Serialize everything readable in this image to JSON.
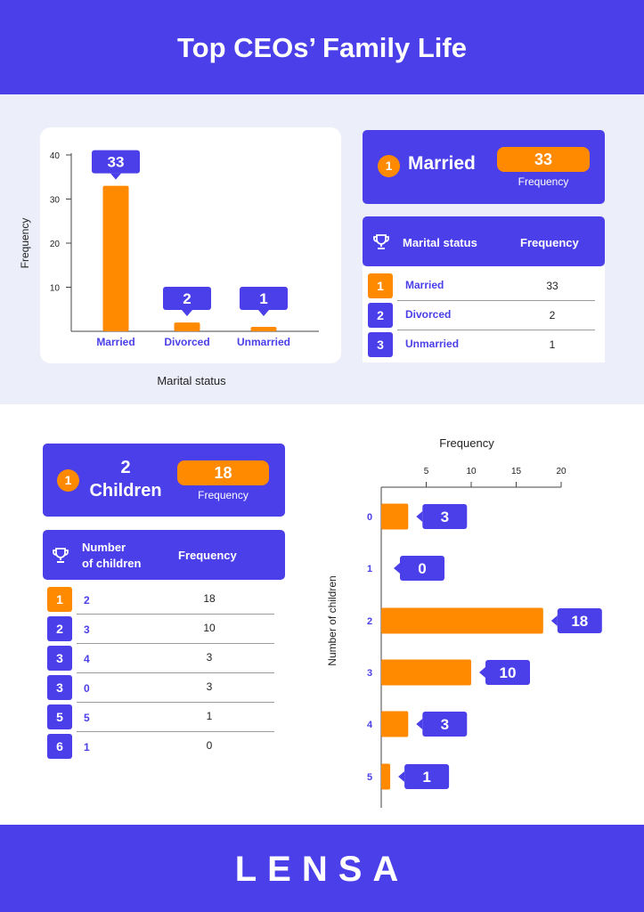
{
  "title": "Top CEOs’ Family Life",
  "logo": "LENSA",
  "colors": {
    "accent": "#4a3fe8",
    "orange": "#ff8a00",
    "band": "#eceef9"
  },
  "icons": {
    "trophy": "trophy-icon"
  },
  "marital": {
    "top_card": {
      "rank": "1",
      "label": "Married",
      "value": "33",
      "value_caption": "Frequency"
    },
    "table_header": {
      "col1": "Marital status",
      "col2": "Frequency"
    },
    "rows": [
      {
        "rank": "1",
        "label": "Married",
        "value": "33"
      },
      {
        "rank": "2",
        "label": "Divorced",
        "value": "2"
      },
      {
        "rank": "3",
        "label": "Unmarried",
        "value": "1"
      }
    ]
  },
  "children": {
    "top_card": {
      "rank": "1",
      "label_line1": "2",
      "label_line2": "Children",
      "value": "18",
      "value_caption": "Frequency"
    },
    "table_header": {
      "col1_line1": "Number",
      "col1_line2": "of children",
      "col2": "Frequency"
    },
    "rows": [
      {
        "rank": "1",
        "label": "2",
        "value": "18"
      },
      {
        "rank": "2",
        "label": "3",
        "value": "10"
      },
      {
        "rank": "3",
        "label": "4",
        "value": "3"
      },
      {
        "rank": "3",
        "label": "0",
        "value": "3"
      },
      {
        "rank": "5",
        "label": "5",
        "value": "1"
      },
      {
        "rank": "6",
        "label": "1",
        "value": "0"
      }
    ]
  },
  "chart_data": [
    {
      "type": "bar",
      "orientation": "vertical",
      "categories": [
        "Married",
        "Divorced",
        "Unmarried"
      ],
      "values": [
        33,
        2,
        1
      ],
      "xlabel": "Marital status",
      "ylabel": "Frequency",
      "ylim": [
        0,
        40
      ],
      "yticks": [
        10,
        20,
        30,
        40
      ],
      "data_labels": [
        "33",
        "2",
        "1"
      ],
      "grid": false,
      "legend": "none"
    },
    {
      "type": "bar",
      "orientation": "horizontal",
      "categories": [
        "0",
        "1",
        "2",
        "3",
        "4",
        "5"
      ],
      "values": [
        3,
        0,
        18,
        10,
        3,
        1
      ],
      "xlabel": "Frequency",
      "ylabel": "Number of children",
      "xlim": [
        0,
        20
      ],
      "xticks": [
        5,
        10,
        15,
        20
      ],
      "x_axis_position": "top",
      "data_labels": [
        "3",
        "0",
        "18",
        "10",
        "3",
        "1"
      ],
      "grid": false,
      "legend": "none"
    }
  ]
}
